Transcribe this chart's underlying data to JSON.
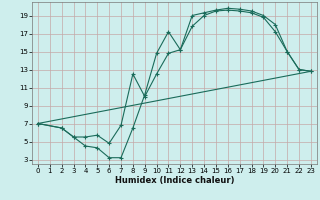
{
  "xlabel": "Humidex (Indice chaleur)",
  "background_color": "#ceeeed",
  "grid_color": "#c4a8a8",
  "line_color": "#1a6b5a",
  "xlim": [
    -0.5,
    23.5
  ],
  "ylim": [
    2.5,
    20.5
  ],
  "xticks": [
    0,
    1,
    2,
    3,
    4,
    5,
    6,
    7,
    8,
    9,
    10,
    11,
    12,
    13,
    14,
    15,
    16,
    17,
    18,
    19,
    20,
    21,
    22,
    23
  ],
  "yticks": [
    3,
    5,
    7,
    9,
    11,
    13,
    15,
    17,
    19
  ],
  "line1_x": [
    0,
    2,
    3,
    4,
    5,
    6,
    7,
    8,
    9,
    10,
    11,
    12,
    13,
    14,
    15,
    16,
    17,
    18,
    19,
    20,
    21,
    22,
    23
  ],
  "line1_y": [
    7,
    6.5,
    5.5,
    4.5,
    4.3,
    3.2,
    3.2,
    6.5,
    10.2,
    14.8,
    17.2,
    15.2,
    19.0,
    19.3,
    19.6,
    19.8,
    19.7,
    19.5,
    19.0,
    18.0,
    15.0,
    13.0,
    12.8
  ],
  "line2_x": [
    0,
    2,
    3,
    4,
    5,
    6,
    7,
    8,
    9,
    10,
    11,
    12,
    13,
    14,
    15,
    16,
    17,
    18,
    19,
    20,
    21,
    22,
    23
  ],
  "line2_y": [
    7,
    6.5,
    5.5,
    5.5,
    5.7,
    4.8,
    6.8,
    12.5,
    10.0,
    12.5,
    14.8,
    15.2,
    17.8,
    19.0,
    19.5,
    19.6,
    19.5,
    19.3,
    18.8,
    17.2,
    15.0,
    13.0,
    12.8
  ],
  "line3_x": [
    0,
    23
  ],
  "line3_y": [
    7,
    12.8
  ],
  "xlabel_fontsize": 6.0,
  "tick_fontsize": 5.0
}
